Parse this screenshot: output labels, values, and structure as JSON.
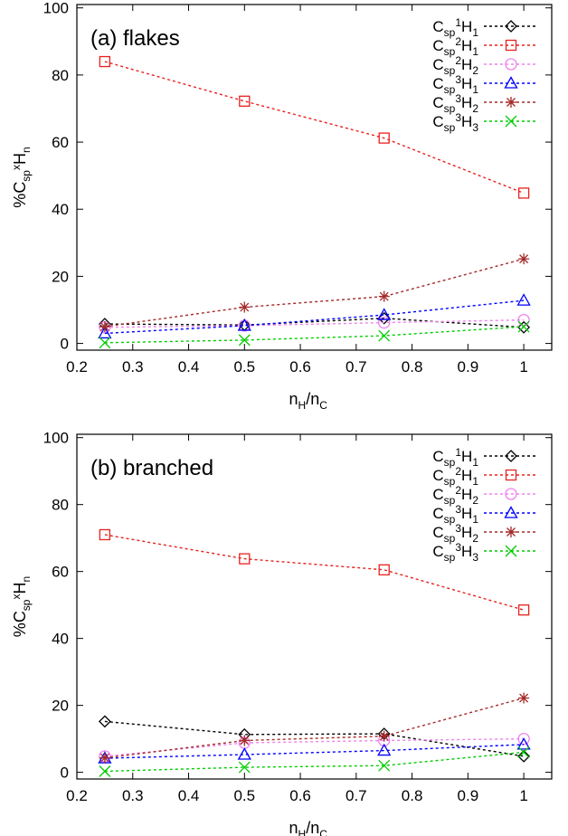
{
  "chart_data": [
    {
      "type": "line",
      "title": "(a) flakes",
      "xlabel": {
        "base": "n",
        "sub1": "H",
        "mid": "/n",
        "sub2": "C"
      },
      "ylabel": {
        "pre": "%C",
        "sub": "sp",
        "sup": "x",
        "mid": "H",
        "sub2": "n"
      },
      "xlim": [
        0.2,
        1.05
      ],
      "ylim": [
        -2,
        101
      ],
      "xticks": [
        "0.2",
        "0.3",
        "0.4",
        "0.5",
        "0.6",
        "0.7",
        "0.8",
        "0.9",
        "1"
      ],
      "yticks": [
        "0",
        "20",
        "40",
        "60",
        "80",
        "100"
      ],
      "x": [
        0.25,
        0.5,
        0.75,
        1.0
      ],
      "series": [
        {
          "key": "sp1H1",
          "label": {
            "sup": "1",
            "sub2": "1"
          },
          "color": "#000000",
          "marker": "diamond",
          "values": [
            5.8,
            5.5,
            7.5,
            4.8
          ]
        },
        {
          "key": "sp2H1",
          "label": {
            "sup": "2",
            "sub2": "1"
          },
          "color": "#e8211e",
          "marker": "square",
          "values": [
            84.0,
            72.2,
            61.2,
            44.8
          ]
        },
        {
          "key": "sp2H2",
          "label": {
            "sup": "2",
            "sub2": "2"
          },
          "color": "#ee82ee",
          "marker": "circle",
          "values": [
            4.8,
            5.3,
            6.2,
            7.0
          ]
        },
        {
          "key": "sp3H1",
          "label": {
            "sup": "3",
            "sub2": "1"
          },
          "color": "#0000ff",
          "marker": "triangle",
          "values": [
            3.0,
            5.3,
            8.5,
            12.8
          ]
        },
        {
          "key": "sp3H2",
          "label": {
            "sup": "3",
            "sub2": "2"
          },
          "color": "#a52a2a",
          "marker": "star",
          "values": [
            5.0,
            10.8,
            14.0,
            25.2
          ]
        },
        {
          "key": "sp3H3",
          "label": {
            "sup": "3",
            "sub2": "3"
          },
          "color": "#00cc00",
          "marker": "x",
          "values": [
            0.2,
            1.0,
            2.3,
            5.0
          ]
        }
      ]
    },
    {
      "type": "line",
      "title": "(b) branched",
      "xlabel": {
        "base": "n",
        "sub1": "H",
        "mid": "/n",
        "sub2": "C"
      },
      "ylabel": {
        "pre": "%C",
        "sub": "sp",
        "sup": "x",
        "mid": "H",
        "sub2": "n"
      },
      "xlim": [
        0.2,
        1.05
      ],
      "ylim": [
        -2,
        101
      ],
      "xticks": [
        "0.2",
        "0.3",
        "0.4",
        "0.5",
        "0.6",
        "0.7",
        "0.8",
        "0.9",
        "1"
      ],
      "yticks": [
        "0",
        "20",
        "40",
        "60",
        "80",
        "100"
      ],
      "x": [
        0.25,
        0.5,
        0.75,
        1.0
      ],
      "series": [
        {
          "key": "sp1H1",
          "label": {
            "sup": "1",
            "sub2": "1"
          },
          "color": "#000000",
          "marker": "diamond",
          "values": [
            15.2,
            11.3,
            11.5,
            4.8
          ]
        },
        {
          "key": "sp2H1",
          "label": {
            "sup": "2",
            "sub2": "1"
          },
          "color": "#e8211e",
          "marker": "square",
          "values": [
            71.0,
            63.8,
            60.5,
            48.5
          ]
        },
        {
          "key": "sp2H2",
          "label": {
            "sup": "2",
            "sub2": "2"
          },
          "color": "#ee82ee",
          "marker": "circle",
          "values": [
            4.8,
            8.8,
            9.5,
            10.0
          ]
        },
        {
          "key": "sp3H1",
          "label": {
            "sup": "3",
            "sub2": "1"
          },
          "color": "#0000ff",
          "marker": "triangle",
          "values": [
            4.2,
            5.3,
            6.5,
            8.3
          ]
        },
        {
          "key": "sp3H2",
          "label": {
            "sup": "3",
            "sub2": "2"
          },
          "color": "#a52a2a",
          "marker": "star",
          "values": [
            4.3,
            9.5,
            10.8,
            22.2
          ]
        },
        {
          "key": "sp3H3",
          "label": {
            "sup": "3",
            "sub2": "3"
          },
          "color": "#00cc00",
          "marker": "x",
          "values": [
            0.3,
            1.5,
            2.0,
            6.0
          ]
        }
      ]
    }
  ]
}
